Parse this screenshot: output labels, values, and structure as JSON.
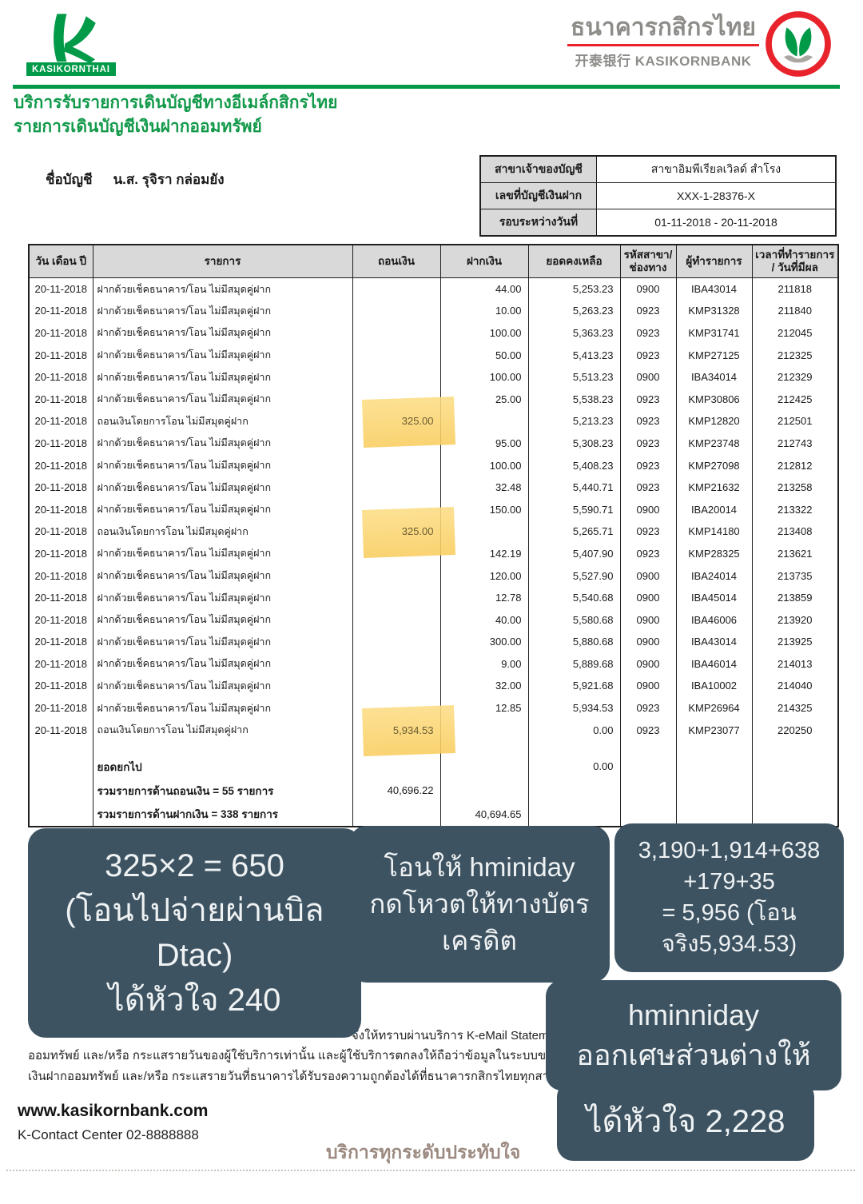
{
  "colors": {
    "brand_green": "#009a48",
    "brand_red": "#e8232b",
    "note_bg": "#3d5362",
    "highlight_yellow": "#fbd36e",
    "header_gray": "#d9d9d9",
    "slogan_brown": "#9c8a81"
  },
  "brand": {
    "logo_badge": "KASIKORNTHAI",
    "bank_name_thai": "ธนาคารกสิกรไทย",
    "bank_name_sub": "开泰银行 KASIKORNBANK"
  },
  "title": {
    "line1": "บริการรับรายการเดินบัญชีทางอีเมล์กสิกรไทย",
    "line2": "รายการเดินบัญชีเงินฝากออมทรัพย์"
  },
  "account": {
    "name_label": "ชื่อบัญชี",
    "name_value": "น.ส. รุจิรา กล่อมยัง",
    "info_rows": [
      {
        "label": "สาขาเจ้าของบัญชี",
        "value": "สาขาอิมพีเรียลเวิลด์ สำโรง"
      },
      {
        "label": "เลขที่บัญชีเงินฝาก",
        "value": "XXX-1-28376-X"
      },
      {
        "label": "รอบระหว่างวันที่",
        "value": "01-11-2018 - 20-11-2018"
      }
    ]
  },
  "statement_table": {
    "headers": [
      "วัน เดือน ปี",
      "รายการ",
      "ถอนเงิน",
      "ฝากเงิน",
      "ยอดคงเหลือ",
      "รหัสสาขา/\nช่องทาง",
      "ผู้ทำรายการ",
      "เวลาที่ทำรายการ\n/ วันที่มีผล"
    ],
    "rows": [
      {
        "date": "20-11-2018",
        "desc": "ฝากด้วยเช็คธนาคาร/โอน ไม่มีสมุดคู่ฝาก",
        "withdraw": "",
        "deposit": "44.00",
        "balance": "5,253.23",
        "branch": "0900",
        "operator": "IBA43014",
        "time": "211818",
        "highlight": false
      },
      {
        "date": "20-11-2018",
        "desc": "ฝากด้วยเช็คธนาคาร/โอน ไม่มีสมุดคู่ฝาก",
        "withdraw": "",
        "deposit": "10.00",
        "balance": "5,263.23",
        "branch": "0923",
        "operator": "KMP31328",
        "time": "211840",
        "highlight": false
      },
      {
        "date": "20-11-2018",
        "desc": "ฝากด้วยเช็คธนาคาร/โอน ไม่มีสมุดคู่ฝาก",
        "withdraw": "",
        "deposit": "100.00",
        "balance": "5,363.23",
        "branch": "0923",
        "operator": "KMP31741",
        "time": "212045",
        "highlight": false
      },
      {
        "date": "20-11-2018",
        "desc": "ฝากด้วยเช็คธนาคาร/โอน ไม่มีสมุดคู่ฝาก",
        "withdraw": "",
        "deposit": "50.00",
        "balance": "5,413.23",
        "branch": "0923",
        "operator": "KMP27125",
        "time": "212325",
        "highlight": false
      },
      {
        "date": "20-11-2018",
        "desc": "ฝากด้วยเช็คธนาคาร/โอน ไม่มีสมุดคู่ฝาก",
        "withdraw": "",
        "deposit": "100.00",
        "balance": "5,513.23",
        "branch": "0900",
        "operator": "IBA34014",
        "time": "212329",
        "highlight": false
      },
      {
        "date": "20-11-2018",
        "desc": "ฝากด้วยเช็คธนาคาร/โอน ไม่มีสมุดคู่ฝาก",
        "withdraw": "",
        "deposit": "25.00",
        "balance": "5,538.23",
        "branch": "0923",
        "operator": "KMP30806",
        "time": "212425",
        "highlight": false
      },
      {
        "date": "20-11-2018",
        "desc": "ถอนเงินโดยการโอน ไม่มีสมุดคู่ฝาก",
        "withdraw": "325.00",
        "deposit": "",
        "balance": "5,213.23",
        "branch": "0923",
        "operator": "KMP12820",
        "time": "212501",
        "highlight": true
      },
      {
        "date": "20-11-2018",
        "desc": "ฝากด้วยเช็คธนาคาร/โอน ไม่มีสมุดคู่ฝาก",
        "withdraw": "",
        "deposit": "95.00",
        "balance": "5,308.23",
        "branch": "0923",
        "operator": "KMP23748",
        "time": "212743",
        "highlight": false
      },
      {
        "date": "20-11-2018",
        "desc": "ฝากด้วยเช็คธนาคาร/โอน ไม่มีสมุดคู่ฝาก",
        "withdraw": "",
        "deposit": "100.00",
        "balance": "5,408.23",
        "branch": "0923",
        "operator": "KMP27098",
        "time": "212812",
        "highlight": false
      },
      {
        "date": "20-11-2018",
        "desc": "ฝากด้วยเช็คธนาคาร/โอน ไม่มีสมุดคู่ฝาก",
        "withdraw": "",
        "deposit": "32.48",
        "balance": "5,440.71",
        "branch": "0923",
        "operator": "KMP21632",
        "time": "213258",
        "highlight": false
      },
      {
        "date": "20-11-2018",
        "desc": "ฝากด้วยเช็คธนาคาร/โอน ไม่มีสมุดคู่ฝาก",
        "withdraw": "",
        "deposit": "150.00",
        "balance": "5,590.71",
        "branch": "0900",
        "operator": "IBA20014",
        "time": "213322",
        "highlight": false
      },
      {
        "date": "20-11-2018",
        "desc": "ถอนเงินโดยการโอน ไม่มีสมุดคู่ฝาก",
        "withdraw": "325.00",
        "deposit": "",
        "balance": "5,265.71",
        "branch": "0923",
        "operator": "KMP14180",
        "time": "213408",
        "highlight": true
      },
      {
        "date": "20-11-2018",
        "desc": "ฝากด้วยเช็คธนาคาร/โอน ไม่มีสมุดคู่ฝาก",
        "withdraw": "",
        "deposit": "142.19",
        "balance": "5,407.90",
        "branch": "0923",
        "operator": "KMP28325",
        "time": "213621",
        "highlight": false
      },
      {
        "date": "20-11-2018",
        "desc": "ฝากด้วยเช็คธนาคาร/โอน ไม่มีสมุดคู่ฝาก",
        "withdraw": "",
        "deposit": "120.00",
        "balance": "5,527.90",
        "branch": "0900",
        "operator": "IBA24014",
        "time": "213735",
        "highlight": false
      },
      {
        "date": "20-11-2018",
        "desc": "ฝากด้วยเช็คธนาคาร/โอน ไม่มีสมุดคู่ฝาก",
        "withdraw": "",
        "deposit": "12.78",
        "balance": "5,540.68",
        "branch": "0900",
        "operator": "IBA45014",
        "time": "213859",
        "highlight": false
      },
      {
        "date": "20-11-2018",
        "desc": "ฝากด้วยเช็คธนาคาร/โอน ไม่มีสมุดคู่ฝาก",
        "withdraw": "",
        "deposit": "40.00",
        "balance": "5,580.68",
        "branch": "0900",
        "operator": "IBA46006",
        "time": "213920",
        "highlight": false
      },
      {
        "date": "20-11-2018",
        "desc": "ฝากด้วยเช็คธนาคาร/โอน ไม่มีสมุดคู่ฝาก",
        "withdraw": "",
        "deposit": "300.00",
        "balance": "5,880.68",
        "branch": "0900",
        "operator": "IBA43014",
        "time": "213925",
        "highlight": false
      },
      {
        "date": "20-11-2018",
        "desc": "ฝากด้วยเช็คธนาคาร/โอน ไม่มีสมุดคู่ฝาก",
        "withdraw": "",
        "deposit": "9.00",
        "balance": "5,889.68",
        "branch": "0900",
        "operator": "IBA46014",
        "time": "214013",
        "highlight": false
      },
      {
        "date": "20-11-2018",
        "desc": "ฝากด้วยเช็คธนาคาร/โอน ไม่มีสมุดคู่ฝาก",
        "withdraw": "",
        "deposit": "32.00",
        "balance": "5,921.68",
        "branch": "0900",
        "operator": "IBA10002",
        "time": "214040",
        "highlight": false
      },
      {
        "date": "20-11-2018",
        "desc": "ฝากด้วยเช็คธนาคาร/โอน ไม่มีสมุดคู่ฝาก",
        "withdraw": "",
        "deposit": "12.85",
        "balance": "5,934.53",
        "branch": "0923",
        "operator": "KMP26964",
        "time": "214325",
        "highlight": false
      },
      {
        "date": "20-11-2018",
        "desc": "ถอนเงินโดยการโอน ไม่มีสมุดคู่ฝาก",
        "withdraw": "5,934.53",
        "deposit": "",
        "balance": "0.00",
        "branch": "0923",
        "operator": "KMP23077",
        "time": "220250",
        "highlight": true
      }
    ],
    "summary": {
      "carry_forward": {
        "label": "ยอดยกไป",
        "balance": "0.00"
      },
      "withdraw_total": {
        "label": "รวมรายการด้านถอนเงิน = 55 รายการ",
        "amount": "40,696.22"
      },
      "deposit_total": {
        "label": "รวมรายการด้านฝากเงิน = 338 รายการ",
        "amount": "40,694.65"
      }
    }
  },
  "notes": {
    "box1": {
      "lines": [
        "325×2 = 650",
        "(โอนไปจ่ายผ่านบิล",
        "Dtac)",
        "ได้หัวใจ 240"
      ]
    },
    "box2": {
      "lines": [
        "โอนให้ hminiday",
        "กดโหวตให้ทางบัตร",
        "เครดิต"
      ]
    },
    "box3": {
      "lines": [
        "3,190+1,914+638",
        "+179+35",
        "= 5,956 (โอน",
        "จริง5,934.53)"
      ]
    },
    "box4": {
      "lines": [
        "hminniday",
        "ออกเศษส่วนต่างให้"
      ]
    },
    "box5": {
      "lines": [
        "ได้หัวใจ 2,228"
      ]
    }
  },
  "disclaimer": {
    "line1": "จังให้ทราบผ่านบริการ K-eMail Statement ของ",
    "line2": "ออมทรัพย์ และ/หรือ กระแสรายวันของผู้ใช้บริการเท่านั้น และผู้ใช้บริการตกลงให้ถือว่าข้อมูลในระบบของธนาคารเป็นข้อมูลที่ถูก",
    "line3": "เงินฝากออมทรัพย์ และ/หรือ กระแสรายวันที่ธนาคารได้รับรองความถูกต้องได้ที่ธนาคารกสิกรไทยทุกสาขา"
  },
  "footer": {
    "website": "www.kasikornbank.com",
    "contact": "K-Contact Center 02-8888888",
    "slogan": "บริการทุกระดับประทับใจ"
  }
}
